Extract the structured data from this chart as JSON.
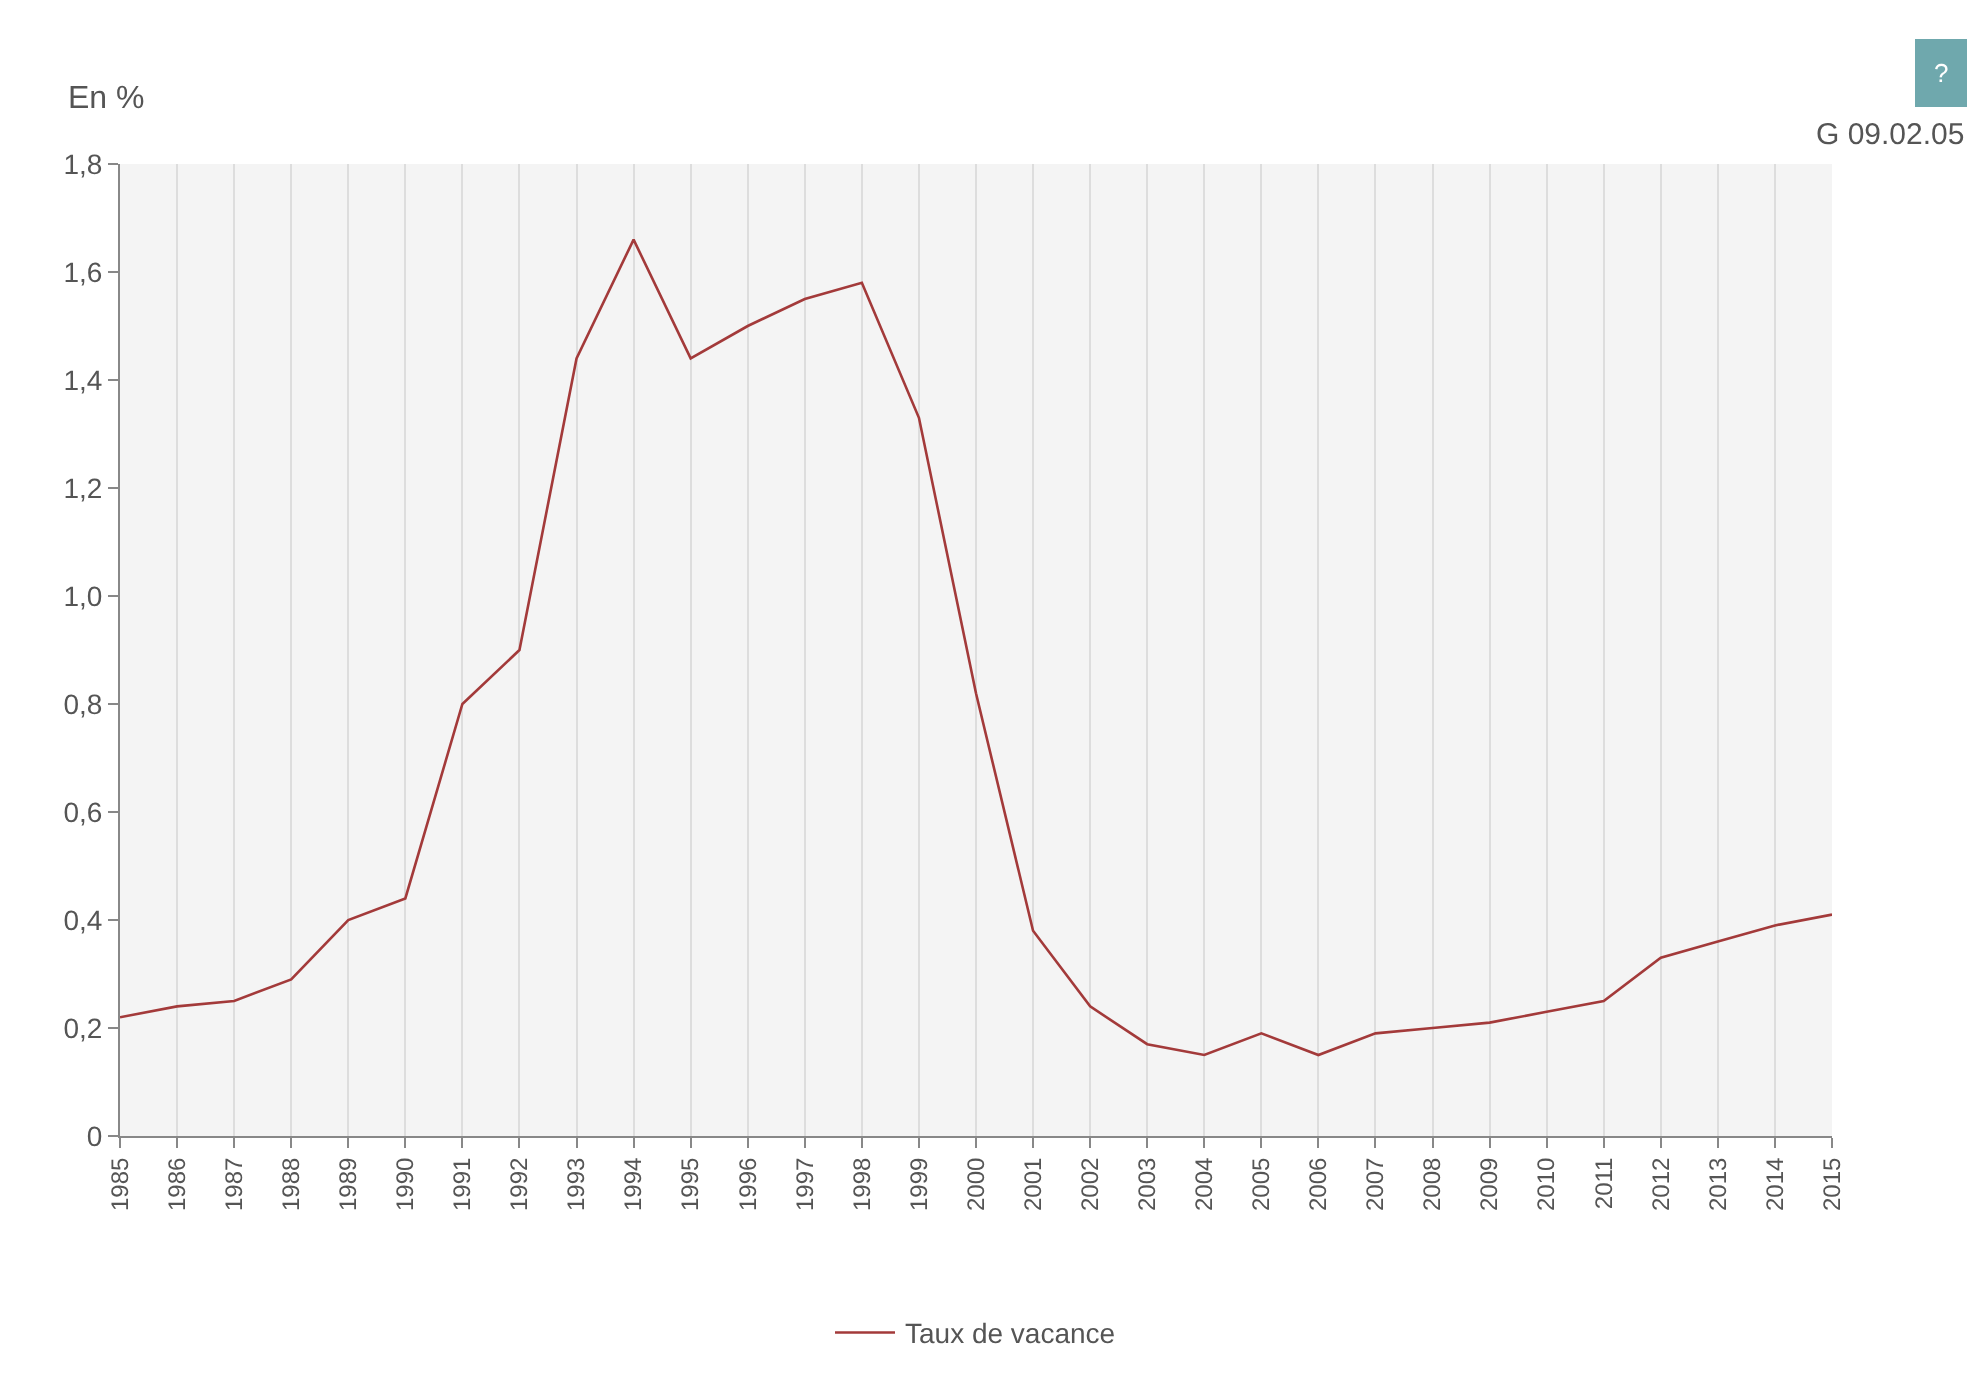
{
  "chart_data": {
    "type": "line",
    "ylabel": "En %",
    "x": [
      1985,
      1986,
      1987,
      1988,
      1989,
      1990,
      1991,
      1992,
      1993,
      1994,
      1995,
      1996,
      1997,
      1998,
      1999,
      2000,
      2001,
      2002,
      2003,
      2004,
      2005,
      2006,
      2007,
      2008,
      2009,
      2010,
      2011,
      2012,
      2013,
      2014,
      2015
    ],
    "series": [
      {
        "name": "Taux de vacance",
        "color": "#a33a3a",
        "values": [
          0.22,
          0.24,
          0.25,
          0.29,
          0.4,
          0.44,
          0.8,
          0.9,
          1.44,
          1.66,
          1.44,
          1.5,
          1.55,
          1.58,
          1.33,
          0.82,
          0.38,
          0.24,
          0.17,
          0.15,
          0.19,
          0.15,
          0.19,
          0.2,
          0.21,
          0.23,
          0.25,
          0.33,
          0.36,
          0.39,
          0.41
        ]
      }
    ],
    "xlim": [
      1985,
      2015
    ],
    "xticks": [
      1985,
      1986,
      1987,
      1988,
      1989,
      1990,
      1991,
      1992,
      1993,
      1994,
      1995,
      1996,
      1997,
      1998,
      1999,
      2000,
      2001,
      2002,
      2003,
      2004,
      2005,
      2006,
      2007,
      2008,
      2009,
      2010,
      2011,
      2012,
      2013,
      2014,
      2015
    ],
    "ylim": [
      0,
      1.8
    ],
    "yticks": [
      0,
      {
        "value": 0.2,
        "label": "0,2"
      },
      {
        "value": 0.4,
        "label": "0,4"
      },
      {
        "value": 0.6,
        "label": "0,6"
      },
      {
        "value": 0.8,
        "label": "0,8"
      },
      {
        "value": 1.0,
        "label": "1,0"
      },
      {
        "value": 1.2,
        "label": "1,2"
      },
      {
        "value": 1.4,
        "label": "1,4"
      },
      {
        "value": 1.6,
        "label": "1,6"
      },
      {
        "value": 1.8,
        "label": "1,8"
      }
    ],
    "grid": "x",
    "legend": "bottom",
    "marker": "none",
    "line_style": "solid",
    "annotations": [
      "G 09.02.05",
      "?"
    ]
  }
}
